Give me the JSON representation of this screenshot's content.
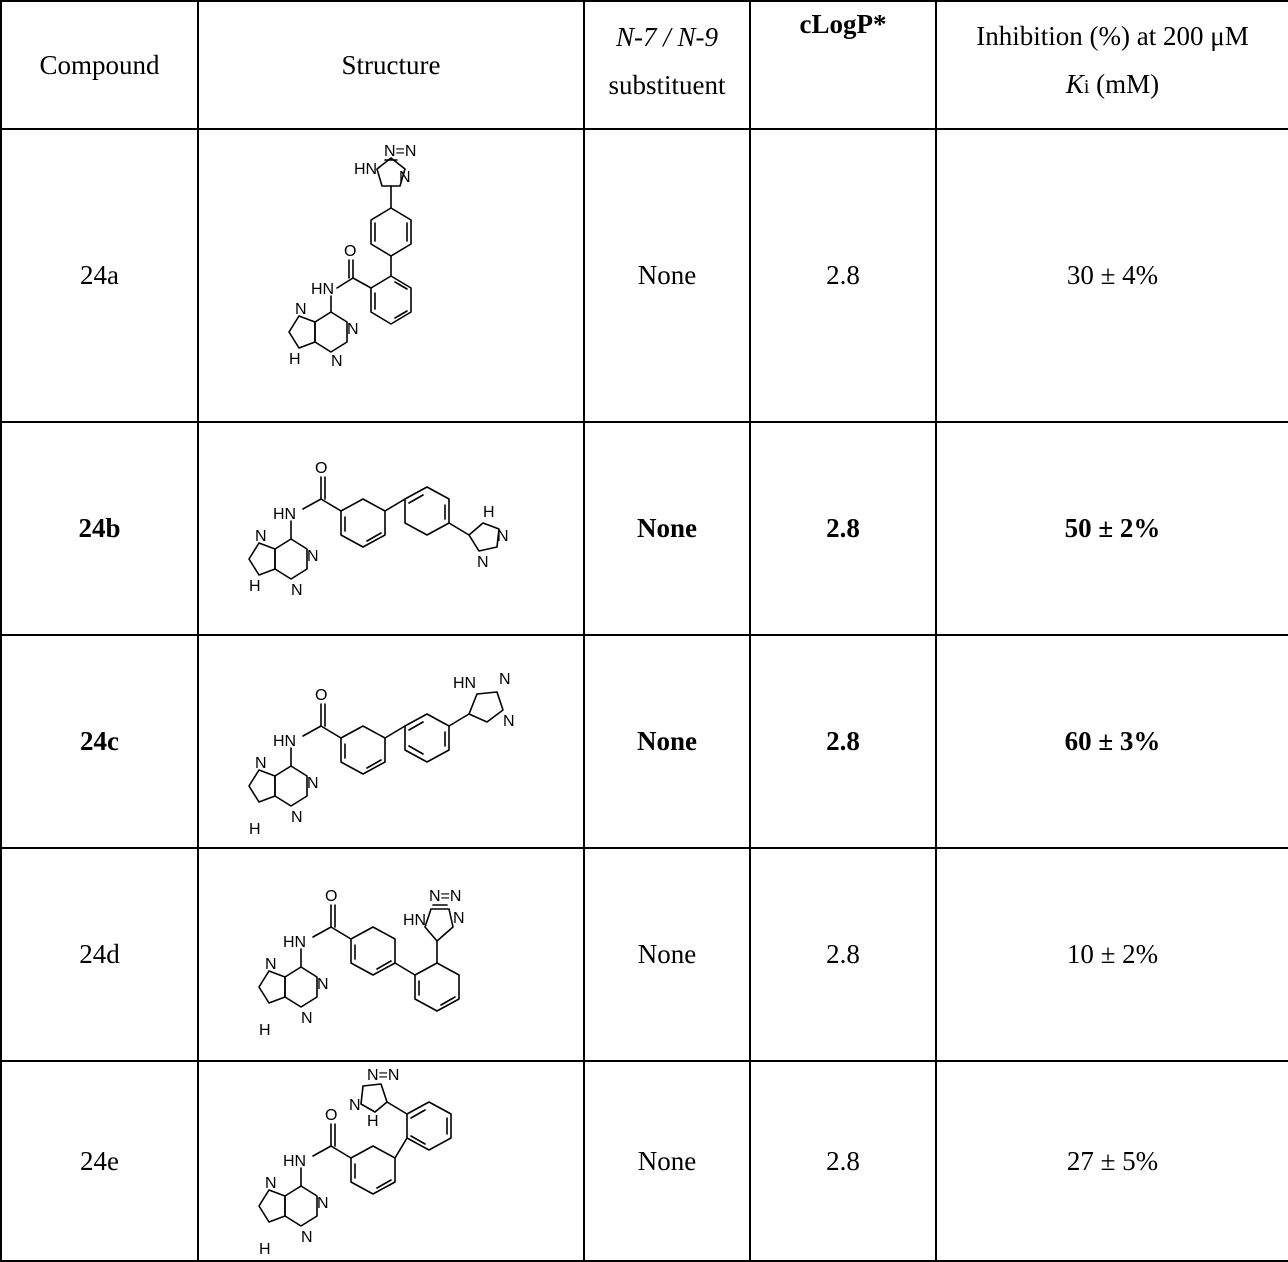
{
  "headers": {
    "compound": "Compound",
    "structure": "Structure",
    "substituent_line1": "N-7 / N-9",
    "substituent_line2": "substituent",
    "clogp": "cLogP*",
    "inhibition_line1": "Inhibition (%) at 200 μM",
    "ki_italic": "K",
    "ki_sub": "i",
    "ki_rest": " (mM)"
  },
  "rows": [
    {
      "compound": "24a",
      "substituent": "None",
      "clogp": "2.8",
      "inhibition": "30 ± 4%",
      "bold": false
    },
    {
      "compound": "24b",
      "substituent": "None",
      "clogp": "2.8",
      "inhibition": "50 ± 2%",
      "bold": true
    },
    {
      "compound": "24c",
      "substituent": "None",
      "clogp": "2.8",
      "inhibition": "60 ± 3%",
      "bold": true
    },
    {
      "compound": "24d",
      "substituent": "None",
      "clogp": "2.8",
      "inhibition": "10 ± 2%",
      "bold": false
    },
    {
      "compound": "24e",
      "substituent": "None",
      "clogp": "2.8",
      "inhibition": "27 ± 5%",
      "bold": false
    }
  ],
  "atom_labels": {
    "N": "N",
    "NH": "NH",
    "HN": "HN",
    "H": "H",
    "O": "O",
    "NNN": "N=N"
  }
}
